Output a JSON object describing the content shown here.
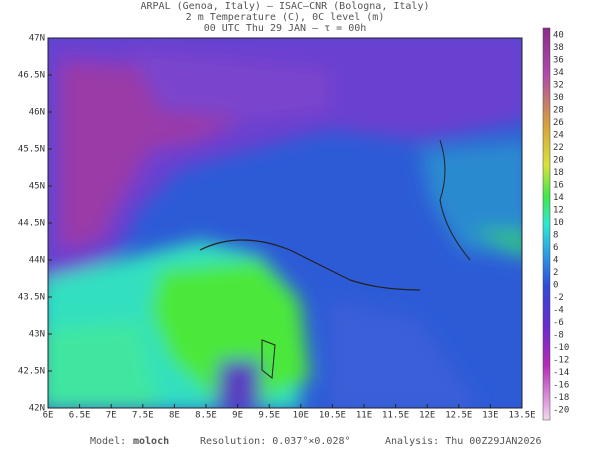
{
  "header": {
    "lines": [
      "ARPAL (Genoa, Italy)  –  ISAC–CNR (Bologna, Italy)",
      "2 m Temperature (C), 0C level (m)",
      "00 UTC Thu 29 JAN  –  τ = 00h"
    ]
  },
  "map": {
    "lat_labels": [
      "47N",
      "46.5N",
      "46N",
      "45.5N",
      "45N",
      "44.5N",
      "44N",
      "43.5N",
      "43N",
      "42.5N",
      "42N"
    ],
    "lon_labels": [
      "6E",
      "6.5E",
      "7E",
      "7.5E",
      "8E",
      "8.5E",
      "9E",
      "9.5E",
      "10E",
      "10.5E",
      "11E",
      "11.5E",
      "12E",
      "12.5E",
      "13E",
      "13.5E"
    ]
  },
  "colorbar": {
    "labels": [
      "40",
      "38",
      "36",
      "34",
      "32",
      "30",
      "28",
      "26",
      "24",
      "22",
      "20",
      "18",
      "16",
      "14",
      "12",
      "10",
      "8",
      "6",
      "4",
      "2",
      "0",
      "-2",
      "-4",
      "-6",
      "-8",
      "-10",
      "-12",
      "-14",
      "-16",
      "-18",
      "-20"
    ]
  },
  "footer": {
    "model_label": "Model:",
    "model": "moloch",
    "resolution": "Resolution: 0.037°×0.028°",
    "analysis": "Analysis: Thu 00Z29JAN2026"
  }
}
